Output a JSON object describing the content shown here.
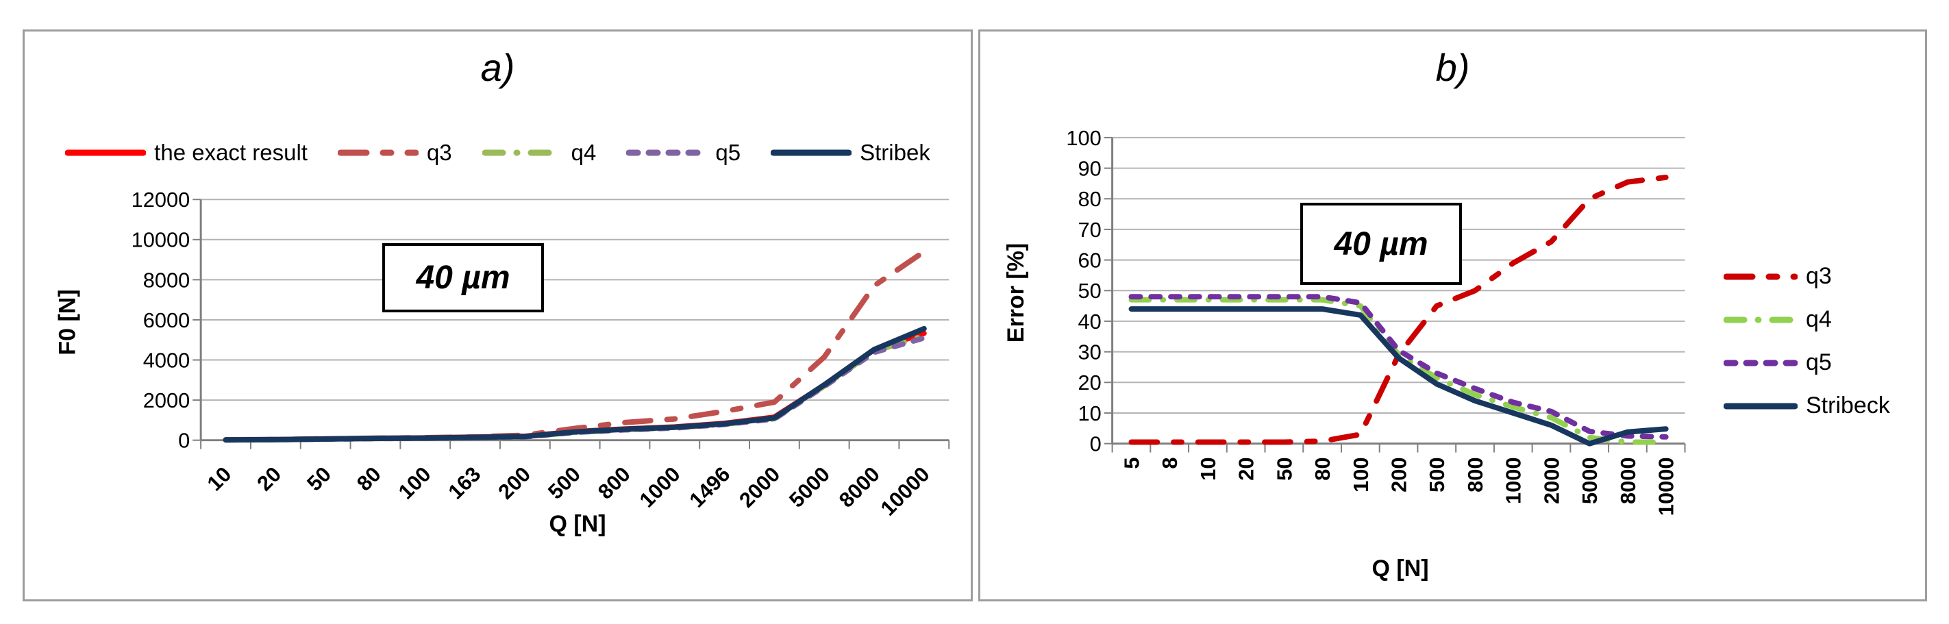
{
  "figure": {
    "background": "#ffffff",
    "panel_border_color": "#9d9d9d",
    "grid_color": "#b3b3b3",
    "axis_color": "#7f7f7f",
    "text_color": "#000000"
  },
  "chart_data": [
    {
      "id": "a",
      "type": "line",
      "title": "a)",
      "annotation": "40 µm",
      "xlabel": "Q [N]",
      "ylabel": "F0 [N]",
      "legend_position": "top",
      "grid": true,
      "x_tick_rotation": -45,
      "ylim": [
        0,
        12000
      ],
      "yticks": [
        0,
        2000,
        4000,
        6000,
        8000,
        10000,
        12000
      ],
      "categories": [
        "10",
        "20",
        "50",
        "80",
        "100",
        "163",
        "200",
        "500",
        "800",
        "1000",
        "1496",
        "2000",
        "5000",
        "8000",
        "10000"
      ],
      "series": [
        {
          "name": "the exact result",
          "color": "#FF0000",
          "dash": "solid",
          "values": [
            20,
            35,
            65,
            95,
            115,
            155,
            195,
            430,
            560,
            660,
            840,
            1150,
            2750,
            4520,
            5330
          ]
        },
        {
          "name": "q3",
          "color": "#C0504D",
          "dash": "long-short",
          "values": [
            20,
            35,
            70,
            100,
            125,
            170,
            250,
            590,
            880,
            1060,
            1440,
            1900,
            4150,
            7700,
            9400
          ]
        },
        {
          "name": "q4",
          "color": "#9BBB59",
          "dash": "dash-dot",
          "values": [
            15,
            28,
            55,
            80,
            100,
            135,
            170,
            395,
            520,
            620,
            795,
            1070,
            2700,
            4430,
            5200
          ]
        },
        {
          "name": "q5",
          "color": "#8064A2",
          "dash": "dash",
          "values": [
            15,
            28,
            55,
            80,
            100,
            135,
            170,
            390,
            515,
            610,
            785,
            1060,
            2680,
            4380,
            5100
          ]
        },
        {
          "name": "Stribek",
          "color": "#17375E",
          "dash": "solid",
          "values": [
            18,
            32,
            60,
            90,
            110,
            145,
            185,
            415,
            545,
            645,
            820,
            1110,
            2760,
            4520,
            5560
          ]
        }
      ]
    },
    {
      "id": "b",
      "type": "line",
      "title": "b)",
      "annotation": "40 µm",
      "xlabel": "Q [N]",
      "ylabel": "Error [%]",
      "legend_position": "right",
      "grid": true,
      "x_tick_rotation": -90,
      "ylim": [
        0,
        100
      ],
      "yticks": [
        0,
        10,
        20,
        30,
        40,
        50,
        60,
        70,
        80,
        90,
        100
      ],
      "categories": [
        "5",
        "8",
        "10",
        "20",
        "50",
        "80",
        "100",
        "200",
        "500",
        "800",
        "1000",
        "2000",
        "5000",
        "8000",
        "10000"
      ],
      "series": [
        {
          "name": "q3",
          "color": "#CC0000",
          "dash": "long-short",
          "values": [
            0.5,
            0.5,
            0.5,
            0.5,
            0.5,
            0.8,
            3,
            29,
            45,
            50,
            59,
            66,
            80,
            85.5,
            87
          ]
        },
        {
          "name": "q4",
          "color": "#92D050",
          "dash": "dash-dot",
          "values": [
            47,
            47,
            47,
            47,
            47,
            47,
            45,
            29,
            21.5,
            16,
            12,
            8.5,
            2,
            0.5,
            0.5
          ]
        },
        {
          "name": "q5",
          "color": "#7030A0",
          "dash": "dash",
          "values": [
            48,
            48,
            48,
            48,
            48,
            48,
            46,
            30.5,
            23,
            18,
            13.5,
            10.5,
            4,
            2.5,
            2.2
          ]
        },
        {
          "name": "Stribeck",
          "color": "#17375E",
          "dash": "solid",
          "values": [
            44,
            44,
            44,
            44,
            44,
            44,
            42,
            28,
            19.5,
            14,
            10,
            6,
            0,
            3.8,
            4.8
          ]
        }
      ]
    }
  ]
}
